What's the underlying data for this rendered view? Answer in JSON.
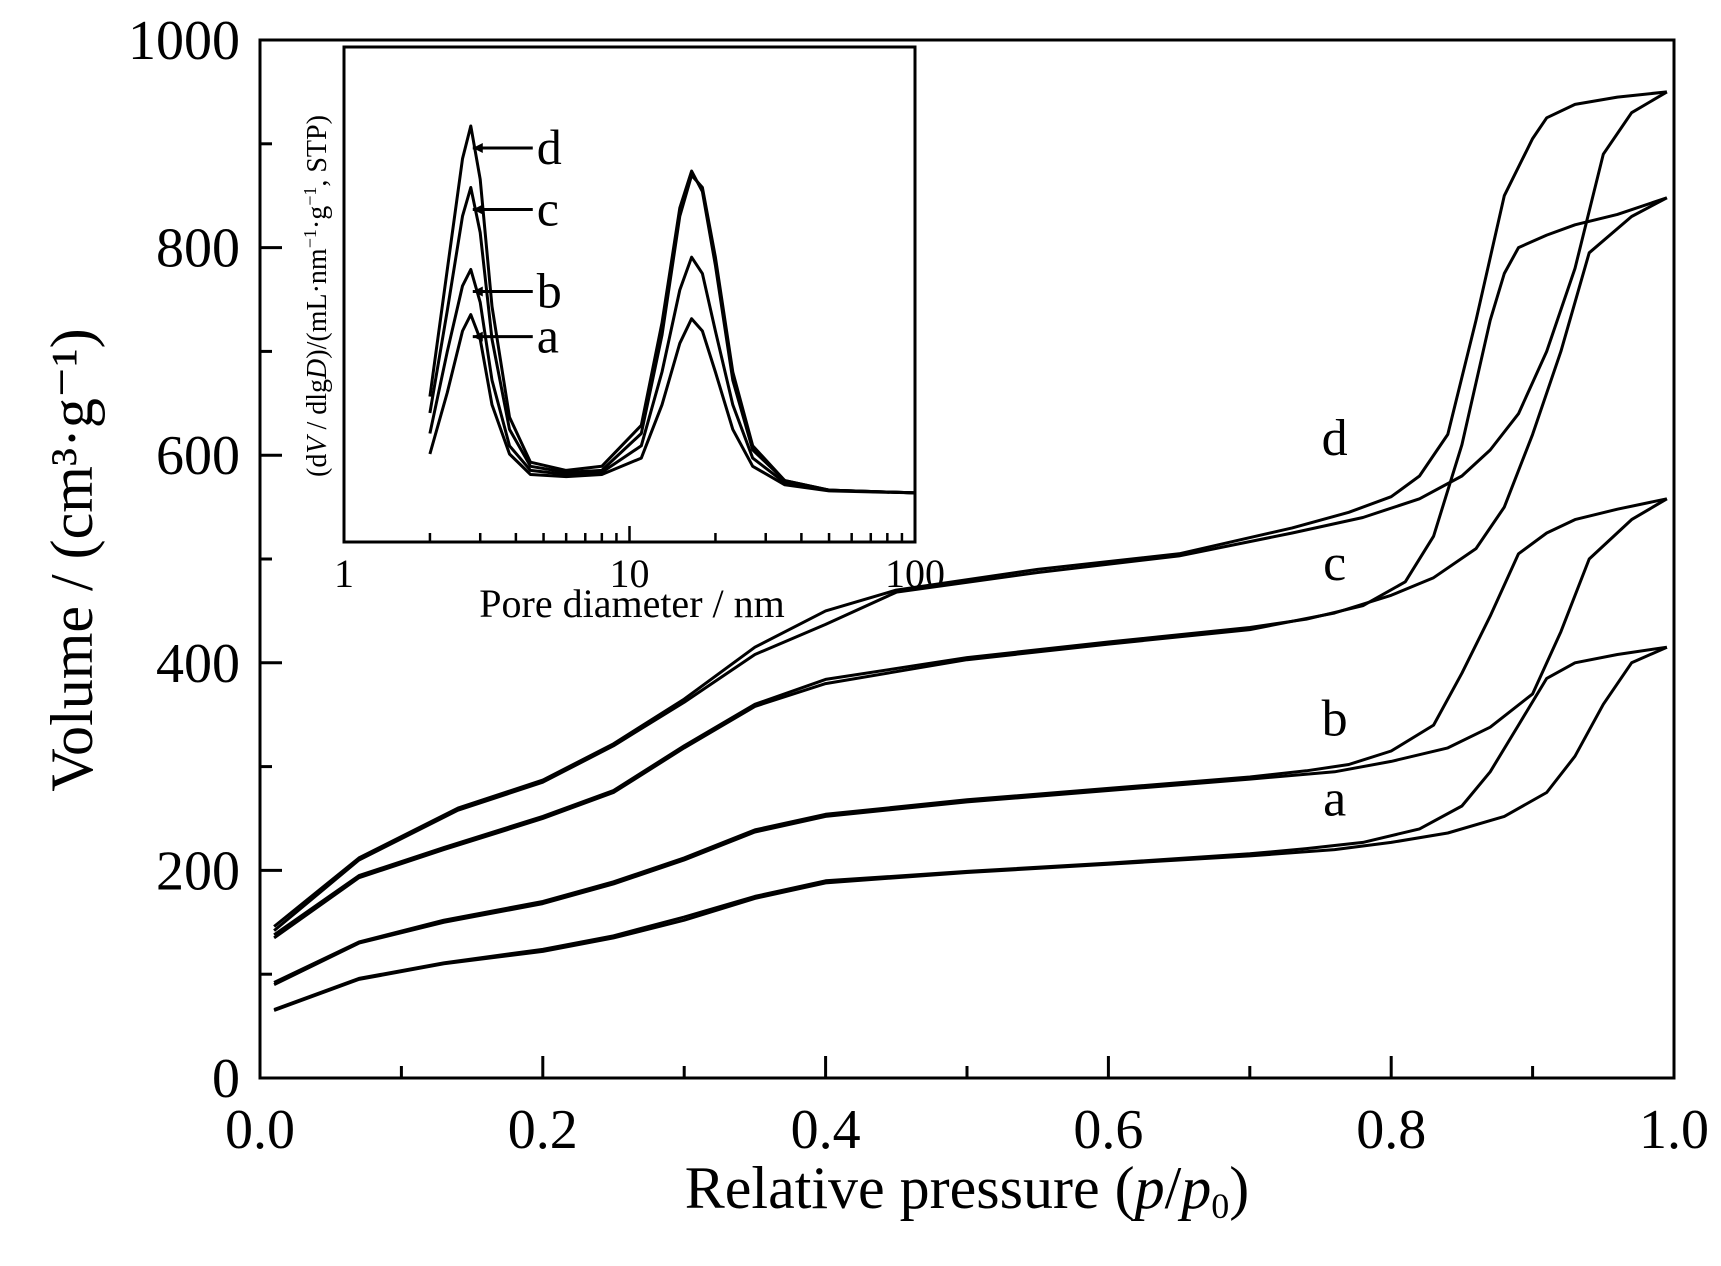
{
  "chart_data": [
    {
      "type": "line",
      "xlabel": {
        "pre": "Relative pressure (",
        "p": "p",
        "slash": "/",
        "p0": "p",
        "sub": "0",
        "post": ")"
      },
      "ylabel": "Volume / (cm³·g⁻¹)",
      "xlim": [
        0,
        1.0
      ],
      "ylim": [
        0,
        1000
      ],
      "x_ticks": [
        "0.0",
        "0.2",
        "0.4",
        "0.6",
        "0.8",
        "1.0"
      ],
      "y_ticks": [
        "0",
        "200",
        "400",
        "600",
        "800",
        "1000"
      ],
      "grid": false,
      "series": [
        {
          "name": "a",
          "adsorption": [
            [
              0.01,
              65
            ],
            [
              0.07,
              95
            ],
            [
              0.13,
              110
            ],
            [
              0.2,
              122
            ],
            [
              0.25,
              135
            ],
            [
              0.3,
              152
            ],
            [
              0.35,
              173
            ],
            [
              0.4,
              188
            ],
            [
              0.5,
              198
            ],
            [
              0.6,
              206
            ],
            [
              0.7,
              214
            ],
            [
              0.76,
              220
            ],
            [
              0.8,
              227
            ],
            [
              0.84,
              236
            ],
            [
              0.88,
              252
            ],
            [
              0.91,
              275
            ],
            [
              0.93,
              310
            ],
            [
              0.95,
              360
            ],
            [
              0.97,
              400
            ],
            [
              0.995,
              415
            ]
          ],
          "desorption": [
            [
              0.995,
              415
            ],
            [
              0.96,
              408
            ],
            [
              0.93,
              400
            ],
            [
              0.91,
              385
            ],
            [
              0.89,
              340
            ],
            [
              0.87,
              295
            ],
            [
              0.85,
              262
            ],
            [
              0.82,
              240
            ],
            [
              0.78,
              227
            ],
            [
              0.74,
              221
            ],
            [
              0.7,
              216
            ],
            [
              0.6,
              207
            ],
            [
              0.5,
              199
            ],
            [
              0.4,
              190
            ],
            [
              0.35,
              175
            ],
            [
              0.3,
              155
            ],
            [
              0.25,
              137
            ],
            [
              0.2,
              124
            ],
            [
              0.13,
              111
            ],
            [
              0.07,
              96
            ],
            [
              0.01,
              66
            ]
          ]
        },
        {
          "name": "b",
          "adsorption": [
            [
              0.01,
              90
            ],
            [
              0.07,
              130
            ],
            [
              0.13,
              150
            ],
            [
              0.2,
              168
            ],
            [
              0.25,
              187
            ],
            [
              0.3,
              210
            ],
            [
              0.35,
              237
            ],
            [
              0.4,
              252
            ],
            [
              0.5,
              266
            ],
            [
              0.6,
              277
            ],
            [
              0.7,
              288
            ],
            [
              0.76,
              295
            ],
            [
              0.8,
              305
            ],
            [
              0.84,
              318
            ],
            [
              0.87,
              338
            ],
            [
              0.9,
              370
            ],
            [
              0.92,
              430
            ],
            [
              0.94,
              500
            ],
            [
              0.97,
              538
            ],
            [
              0.995,
              558
            ]
          ],
          "desorption": [
            [
              0.995,
              558
            ],
            [
              0.96,
              548
            ],
            [
              0.93,
              538
            ],
            [
              0.91,
              525
            ],
            [
              0.89,
              505
            ],
            [
              0.87,
              445
            ],
            [
              0.85,
              390
            ],
            [
              0.83,
              340
            ],
            [
              0.8,
              315
            ],
            [
              0.77,
              302
            ],
            [
              0.74,
              296
            ],
            [
              0.7,
              290
            ],
            [
              0.6,
              279
            ],
            [
              0.5,
              268
            ],
            [
              0.4,
              254
            ],
            [
              0.35,
              239
            ],
            [
              0.3,
              212
            ],
            [
              0.25,
              189
            ],
            [
              0.2,
              170
            ],
            [
              0.13,
              152
            ],
            [
              0.07,
              131
            ],
            [
              0.01,
              92
            ]
          ]
        },
        {
          "name": "c",
          "adsorption": [
            [
              0.01,
              135
            ],
            [
              0.07,
              193
            ],
            [
              0.13,
              220
            ],
            [
              0.2,
              250
            ],
            [
              0.25,
              275
            ],
            [
              0.3,
              318
            ],
            [
              0.35,
              358
            ],
            [
              0.4,
              380
            ],
            [
              0.5,
              403
            ],
            [
              0.6,
              418
            ],
            [
              0.7,
              432
            ],
            [
              0.76,
              448
            ],
            [
              0.8,
              465
            ],
            [
              0.83,
              482
            ],
            [
              0.86,
              510
            ],
            [
              0.88,
              550
            ],
            [
              0.9,
              620
            ],
            [
              0.92,
              700
            ],
            [
              0.94,
              795
            ],
            [
              0.97,
              830
            ],
            [
              0.995,
              848
            ]
          ],
          "desorption": [
            [
              0.995,
              848
            ],
            [
              0.96,
              832
            ],
            [
              0.93,
              822
            ],
            [
              0.91,
              812
            ],
            [
              0.89,
              800
            ],
            [
              0.88,
              775
            ],
            [
              0.87,
              730
            ],
            [
              0.85,
              610
            ],
            [
              0.83,
              522
            ],
            [
              0.81,
              478
            ],
            [
              0.78,
              455
            ],
            [
              0.74,
              442
            ],
            [
              0.7,
              434
            ],
            [
              0.6,
              420
            ],
            [
              0.5,
              405
            ],
            [
              0.4,
              384
            ],
            [
              0.35,
              360
            ],
            [
              0.3,
              320
            ],
            [
              0.25,
              277
            ],
            [
              0.2,
              252
            ],
            [
              0.13,
              222
            ],
            [
              0.07,
              195
            ],
            [
              0.01,
              138
            ]
          ]
        },
        {
          "name": "d",
          "adsorption": [
            [
              0.01,
              142
            ],
            [
              0.07,
              210
            ],
            [
              0.14,
              258
            ],
            [
              0.2,
              285
            ],
            [
              0.25,
              320
            ],
            [
              0.3,
              362
            ],
            [
              0.35,
              408
            ],
            [
              0.4,
              437
            ],
            [
              0.45,
              468
            ],
            [
              0.55,
              487
            ],
            [
              0.65,
              503
            ],
            [
              0.73,
              525
            ],
            [
              0.78,
              540
            ],
            [
              0.82,
              558
            ],
            [
              0.85,
              580
            ],
            [
              0.87,
              605
            ],
            [
              0.89,
              640
            ],
            [
              0.91,
              700
            ],
            [
              0.93,
              780
            ],
            [
              0.95,
              890
            ],
            [
              0.97,
              930
            ],
            [
              0.995,
              950
            ]
          ],
          "desorption": [
            [
              0.995,
              950
            ],
            [
              0.96,
              945
            ],
            [
              0.93,
              938
            ],
            [
              0.91,
              925
            ],
            [
              0.9,
              905
            ],
            [
              0.88,
              850
            ],
            [
              0.86,
              730
            ],
            [
              0.84,
              620
            ],
            [
              0.82,
              580
            ],
            [
              0.8,
              560
            ],
            [
              0.77,
              545
            ],
            [
              0.73,
              530
            ],
            [
              0.65,
              505
            ],
            [
              0.55,
              490
            ],
            [
              0.45,
              470
            ],
            [
              0.4,
              450
            ],
            [
              0.35,
              415
            ],
            [
              0.3,
              365
            ],
            [
              0.25,
              322
            ],
            [
              0.2,
              287
            ],
            [
              0.14,
              260
            ],
            [
              0.07,
              212
            ],
            [
              0.01,
              146
            ]
          ]
        }
      ],
      "annotations": [
        "a",
        "b",
        "c",
        "d"
      ]
    },
    {
      "type": "line",
      "inset": true,
      "xlabel": "Pore diameter / nm",
      "ylabel": {
        "open": "(d",
        "V": "V",
        "mid": " / dlg",
        "D": "D",
        "rest": ")/(mL·nm",
        "sup1": "−1",
        "dot": "·g",
        "sup2": "−1",
        "end": ", STP)"
      },
      "xscale": "log",
      "xlim": [
        1,
        100
      ],
      "x_ticks": [
        "1",
        "10",
        "100"
      ],
      "y_ticks": [],
      "series": [
        {
          "name": "a",
          "points": [
            [
              2,
              0.1
            ],
            [
              2.3,
              0.25
            ],
            [
              2.6,
              0.4
            ],
            [
              2.78,
              0.44
            ],
            [
              3.0,
              0.38
            ],
            [
              3.3,
              0.22
            ],
            [
              3.8,
              0.1
            ],
            [
              4.5,
              0.05
            ],
            [
              6,
              0.045
            ],
            [
              8,
              0.05
            ],
            [
              11,
              0.09
            ],
            [
              13,
              0.22
            ],
            [
              15,
              0.37
            ],
            [
              16.5,
              0.43
            ],
            [
              18,
              0.4
            ],
            [
              20,
              0.3
            ],
            [
              23,
              0.16
            ],
            [
              27,
              0.07
            ],
            [
              35,
              0.025
            ],
            [
              50,
              0.01
            ],
            [
              100,
              0.005
            ]
          ]
        },
        {
          "name": "b",
          "points": [
            [
              2,
              0.15
            ],
            [
              2.3,
              0.35
            ],
            [
              2.6,
              0.51
            ],
            [
              2.78,
              0.55
            ],
            [
              3.0,
              0.47
            ],
            [
              3.3,
              0.28
            ],
            [
              3.8,
              0.12
            ],
            [
              4.5,
              0.06
            ],
            [
              6,
              0.05
            ],
            [
              8,
              0.055
            ],
            [
              11,
              0.12
            ],
            [
              13,
              0.3
            ],
            [
              15,
              0.5
            ],
            [
              16.5,
              0.58
            ],
            [
              18,
              0.54
            ],
            [
              20,
              0.4
            ],
            [
              23,
              0.22
            ],
            [
              27,
              0.09
            ],
            [
              35,
              0.03
            ],
            [
              50,
              0.012
            ],
            [
              100,
              0.005
            ]
          ]
        },
        {
          "name": "c",
          "points": [
            [
              2,
              0.2
            ],
            [
              2.3,
              0.45
            ],
            [
              2.6,
              0.68
            ],
            [
              2.78,
              0.75
            ],
            [
              3.0,
              0.64
            ],
            [
              3.3,
              0.38
            ],
            [
              3.8,
              0.16
            ],
            [
              4.5,
              0.07
            ],
            [
              6,
              0.055
            ],
            [
              8,
              0.06
            ],
            [
              11,
              0.15
            ],
            [
              13,
              0.39
            ],
            [
              15,
              0.68
            ],
            [
              16.5,
              0.78
            ],
            [
              18,
              0.75
            ],
            [
              20,
              0.58
            ],
            [
              23,
              0.3
            ],
            [
              27,
              0.12
            ],
            [
              35,
              0.035
            ],
            [
              50,
              0.012
            ],
            [
              100,
              0.005
            ]
          ]
        },
        {
          "name": "d",
          "points": [
            [
              2,
              0.24
            ],
            [
              2.3,
              0.55
            ],
            [
              2.6,
              0.82
            ],
            [
              2.78,
              0.9
            ],
            [
              3.0,
              0.77
            ],
            [
              3.3,
              0.46
            ],
            [
              3.8,
              0.19
            ],
            [
              4.5,
              0.08
            ],
            [
              6,
              0.06
            ],
            [
              8,
              0.07
            ],
            [
              11,
              0.17
            ],
            [
              13,
              0.42
            ],
            [
              15,
              0.7
            ],
            [
              16.5,
              0.79
            ],
            [
              18,
              0.74
            ],
            [
              20,
              0.56
            ],
            [
              23,
              0.28
            ],
            [
              27,
              0.11
            ],
            [
              35,
              0.035
            ],
            [
              50,
              0.012
            ],
            [
              100,
              0.005
            ]
          ]
        }
      ],
      "annotations": [
        "a",
        "b",
        "c",
        "d"
      ]
    }
  ]
}
